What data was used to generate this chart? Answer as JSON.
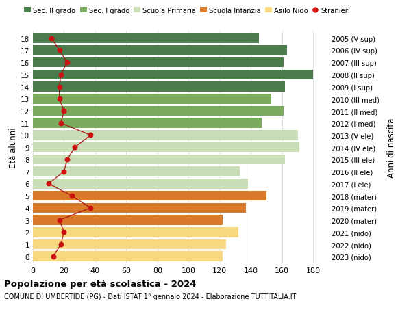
{
  "ages": [
    18,
    17,
    16,
    15,
    14,
    13,
    12,
    11,
    10,
    9,
    8,
    7,
    6,
    5,
    4,
    3,
    2,
    1,
    0
  ],
  "years": [
    "2005 (V sup)",
    "2006 (IV sup)",
    "2007 (III sup)",
    "2008 (II sup)",
    "2009 (I sup)",
    "2010 (III med)",
    "2011 (II med)",
    "2012 (I med)",
    "2013 (V ele)",
    "2014 (IV ele)",
    "2015 (III ele)",
    "2016 (II ele)",
    "2017 (I ele)",
    "2018 (mater)",
    "2019 (mater)",
    "2020 (mater)",
    "2021 (nido)",
    "2022 (nido)",
    "2023 (nido)"
  ],
  "bar_values": [
    145,
    163,
    161,
    180,
    162,
    153,
    161,
    147,
    170,
    171,
    162,
    133,
    138,
    150,
    137,
    122,
    132,
    124,
    122
  ],
  "bar_colors": [
    "#4a7c4e",
    "#4a7c4e",
    "#4a7c4e",
    "#4a7c4e",
    "#4a7c4e",
    "#7aaa5e",
    "#7aaa5e",
    "#7aaa5e",
    "#c8ddb8",
    "#c8ddb8",
    "#c8ddb8",
    "#c8ddb8",
    "#c8ddb8",
    "#d97a2a",
    "#d97a2a",
    "#d97a2a",
    "#f5d880",
    "#f5d880",
    "#f5d880"
  ],
  "stranieri_values": [
    12,
    17,
    22,
    18,
    17,
    17,
    20,
    18,
    37,
    27,
    22,
    20,
    10,
    25,
    37,
    17,
    20,
    18,
    13
  ],
  "legend_labels": [
    "Sec. II grado",
    "Sec. I grado",
    "Scuola Primaria",
    "Scuola Infanzia",
    "Asilo Nido",
    "Stranieri"
  ],
  "legend_colors": [
    "#4a7c4e",
    "#7aaa5e",
    "#c8ddb8",
    "#d97a2a",
    "#f5d880",
    "#cc1111"
  ],
  "title": "Popolazione per età scolastica - 2024",
  "subtitle": "COMUNE DI UMBERTIDE (PG) - Dati ISTAT 1° gennaio 2024 - Elaborazione TUTTITALIA.IT",
  "ylabel_left": "Età alunni",
  "ylabel_right": "Anni di nascita",
  "xlim": [
    0,
    190
  ],
  "xticks": [
    0,
    20,
    40,
    60,
    80,
    100,
    120,
    140,
    160,
    180
  ],
  "bg_color": "#ffffff",
  "grid_color": "#dddddd",
  "stranieri_color": "#cc1111",
  "stranieri_line_color": "#aa1111",
  "bar_height": 0.82
}
